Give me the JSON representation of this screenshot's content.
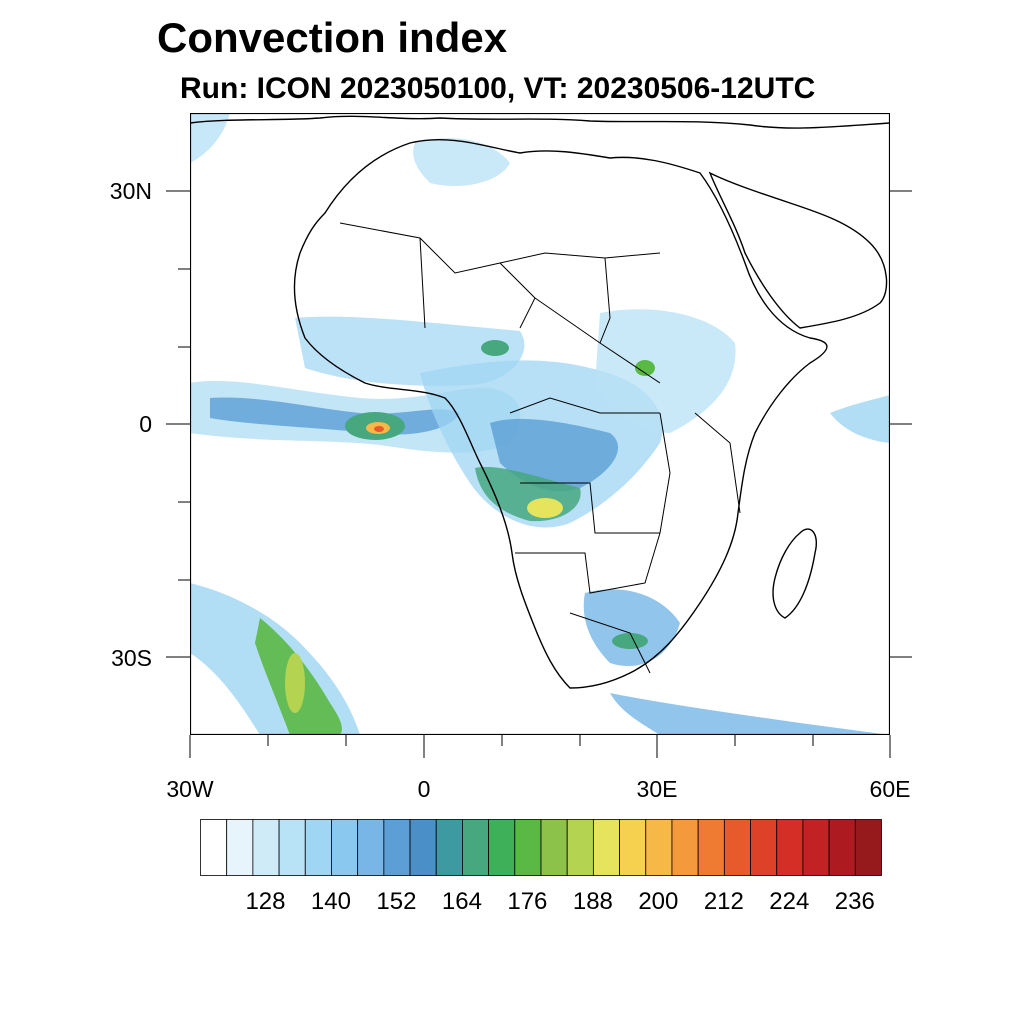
{
  "title": "Convection index",
  "subtitle": "Run: ICON 2023050100,  VT: 20230506-12UTC",
  "map": {
    "lat_labels": [
      "30N",
      "0",
      "30S"
    ],
    "lon_labels": [
      "30W",
      "0",
      "30E",
      "60E"
    ],
    "lat_values": [
      30,
      0,
      -30
    ],
    "lon_values": [
      -30,
      0,
      30,
      60
    ],
    "extent": {
      "lon_min": -30,
      "lon_max": 60,
      "lat_min": -40,
      "lat_max": 40
    },
    "colors": {
      "coast": "#000000",
      "background": "#ffffff"
    }
  },
  "colorbar": {
    "colors": [
      "#ffffff",
      "#e8f4fc",
      "#d0ebf8",
      "#b8e2f6",
      "#9fd6f3",
      "#8ac8ef",
      "#77b6e6",
      "#5b9fd6",
      "#4a8fc8",
      "#3d9aa0",
      "#47a77f",
      "#3fb05a",
      "#5ab845",
      "#8cc24a",
      "#b4d350",
      "#e6e35c",
      "#f6d150",
      "#f6b847",
      "#f49a3c",
      "#ef7b32",
      "#e65a2b",
      "#dd4128",
      "#d42e27",
      "#c22224",
      "#ad1b20",
      "#961a1b"
    ],
    "tick_labels": [
      "128",
      "140",
      "152",
      "164",
      "176",
      "188",
      "200",
      "212",
      "224",
      "236"
    ]
  }
}
